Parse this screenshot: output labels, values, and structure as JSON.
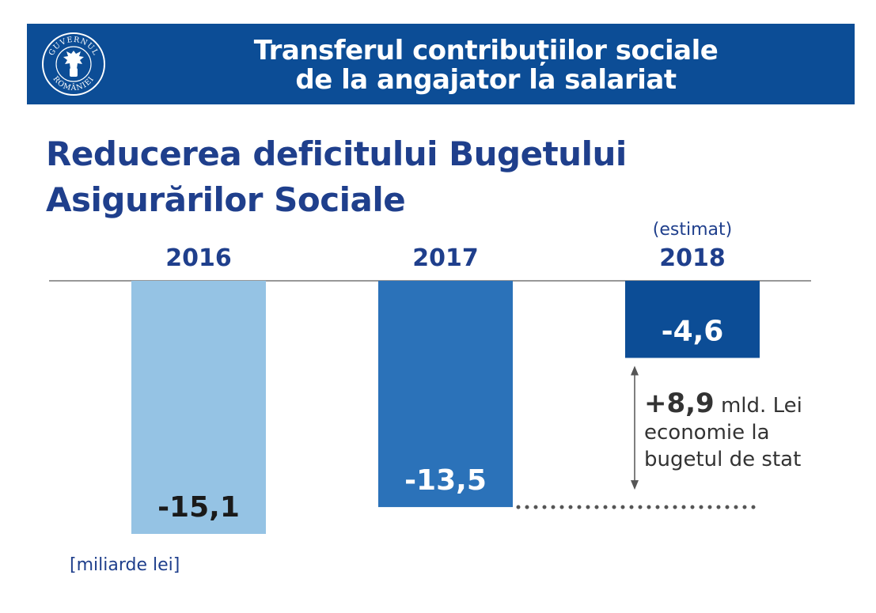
{
  "header": {
    "title_line1": "Transferul contribuțiilor sociale",
    "title_line2": "de la angajator la salariat",
    "logo_text_top": "GUVERNUL",
    "logo_text_bottom": "ROMÂNIEI",
    "logo_icon": "coat-of-arms-icon"
  },
  "subtitle": {
    "line1": "Reducerea deficitului Bugetului",
    "line2": "Asigurărilor Sociale"
  },
  "units_label": "[miliarde lei]",
  "annotation": {
    "value": "+8,9",
    "unit": "mld. Lei",
    "line2": "economie la",
    "line3": "bugetul de stat"
  },
  "colors": {
    "header_bg": "#0c4d96",
    "title_text": "#1f3f8c",
    "bar_2016": "#95c3e4",
    "bar_2017": "#2b72b9",
    "bar_2018": "#0c4d96"
  },
  "chart_data": {
    "type": "bar",
    "categories": [
      "2016",
      "2017",
      "2018"
    ],
    "category_notes": [
      "",
      "",
      "(estimat)"
    ],
    "values": [
      -15.1,
      -13.5,
      -4.6
    ],
    "value_labels": [
      "-15,1",
      "-13,5",
      "-4,6"
    ],
    "ylim": [
      -15.1,
      0
    ],
    "grid": false,
    "legend": "none"
  }
}
